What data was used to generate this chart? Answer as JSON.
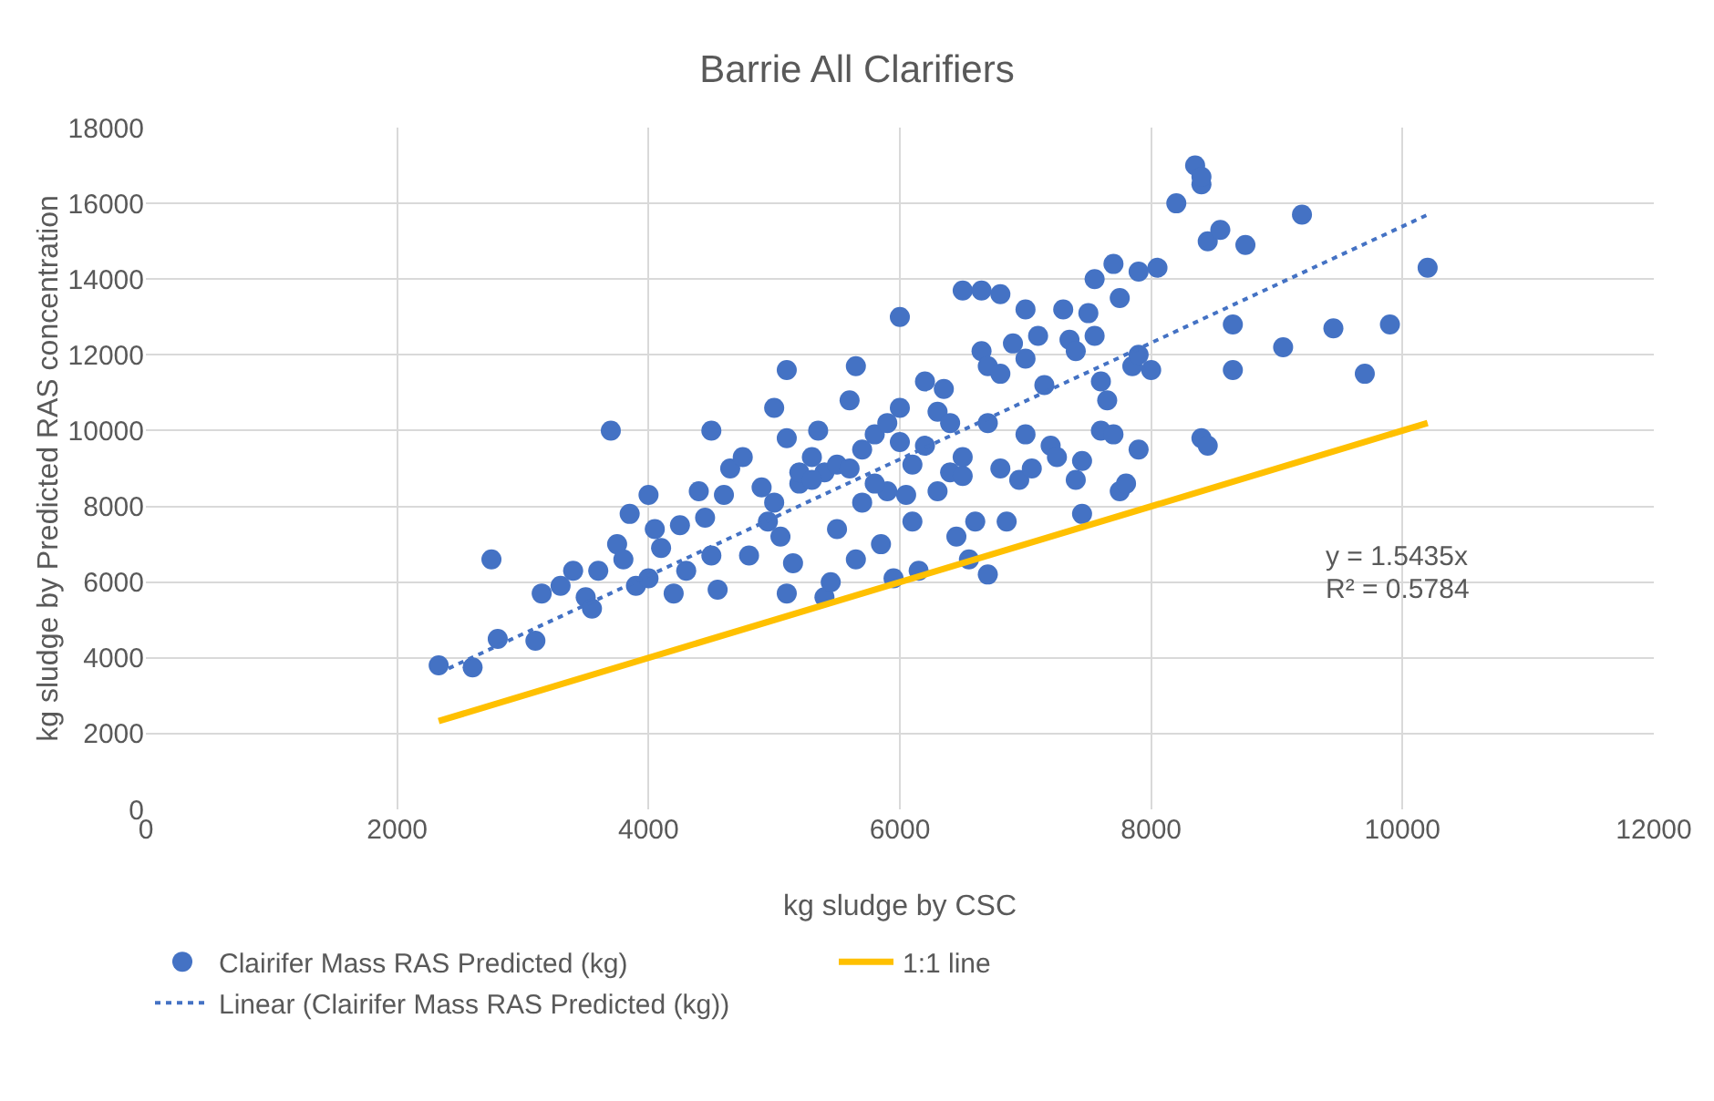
{
  "chart_data": {
    "type": "scatter",
    "title": "Barrie All Clarifiers",
    "xlabel": "kg sludge by CSC",
    "ylabel": "kg sludge by Predicted RAS concentration",
    "xlim": [
      0,
      12000
    ],
    "xticks": [
      0,
      2000,
      4000,
      6000,
      8000,
      10000,
      12000
    ],
    "ylim": [
      0,
      18000
    ],
    "yticks": [
      0,
      2000,
      4000,
      6000,
      8000,
      10000,
      12000,
      14000,
      16000,
      18000
    ],
    "grid": true,
    "legend": "bottom",
    "annotations": [
      "y = 1.5435x",
      "R² = 0.5784"
    ],
    "series": [
      {
        "name": "Clairifer Mass RAS Predicted (kg)",
        "color": "#4472c4",
        "marker": "circle",
        "x": [
          2330,
          2600,
          2750,
          2800,
          3100,
          3150,
          3300,
          3400,
          3500,
          3550,
          3600,
          3700,
          3750,
          3800,
          3850,
          3900,
          4000,
          4000,
          4050,
          4100,
          4200,
          4250,
          4300,
          4400,
          4450,
          4500,
          4500,
          4550,
          4600,
          4650,
          4750,
          4800,
          4900,
          4950,
          5000,
          5050,
          5100,
          5100,
          5100,
          5150,
          5200,
          5300,
          5350,
          5400,
          5400,
          5450,
          5500,
          5500,
          5600,
          5650,
          5650,
          5700,
          5700,
          5800,
          5850,
          5900,
          5900,
          5950,
          6000,
          6000,
          6000,
          6050,
          6100,
          6150,
          6200,
          6200,
          6300,
          6350,
          6400,
          6400,
          6450,
          6500,
          6500,
          6500,
          6550,
          6600,
          6650,
          6650,
          6700,
          6700,
          6700,
          6800,
          6800,
          6800,
          6850,
          6900,
          6950,
          7000,
          7000,
          7000,
          7050,
          7100,
          7150,
          7200,
          7250,
          7300,
          7350,
          7400,
          7400,
          7450,
          7450,
          7500,
          7550,
          7550,
          7600,
          7600,
          7650,
          7700,
          7700,
          7750,
          7750,
          7800,
          7850,
          7900,
          7900,
          7900,
          8000,
          8050,
          8200,
          8350,
          8400,
          8400,
          8400,
          8450,
          8450,
          8550,
          8650,
          8650,
          8750,
          9200,
          9050,
          9450,
          9700,
          9900,
          10200,
          5000,
          5200,
          5300,
          5600,
          5800,
          6100,
          6300
        ],
        "values": [
          3800,
          3750,
          6600,
          4500,
          4450,
          5700,
          5900,
          6300,
          5600,
          5300,
          6300,
          10000,
          7000,
          6600,
          7800,
          5900,
          8300,
          6100,
          7400,
          6900,
          5700,
          7500,
          6300,
          8400,
          7700,
          10000,
          6700,
          5800,
          8300,
          9000,
          9300,
          6700,
          8500,
          7600,
          10600,
          7200,
          11600,
          9800,
          5700,
          6500,
          8600,
          9300,
          10000,
          8900,
          5600,
          6000,
          9100,
          7400,
          10800,
          11700,
          6600,
          9500,
          8100,
          9900,
          7000,
          8400,
          10200,
          6100,
          13000,
          10600,
          9700,
          8300,
          7600,
          6300,
          11300,
          9600,
          10500,
          11100,
          10200,
          8900,
          7200,
          13700,
          9300,
          8800,
          6600,
          7600,
          13700,
          12100,
          11700,
          10200,
          6200,
          13600,
          11500,
          9000,
          7600,
          12300,
          8700,
          13200,
          11900,
          9900,
          9000,
          12500,
          11200,
          9600,
          9300,
          13200,
          12400,
          12100,
          8700,
          7800,
          9200,
          13100,
          14000,
          12500,
          11300,
          10000,
          10800,
          14400,
          9900,
          13500,
          8400,
          8600,
          11700,
          14200,
          12000,
          9500,
          11600,
          14300,
          16000,
          17000,
          16500,
          16700,
          9800,
          15000,
          9600,
          15300,
          12800,
          11600,
          14900,
          15700,
          12200,
          12700,
          11500,
          12800,
          14300,
          8100,
          8900,
          8700,
          9000,
          8600,
          9100,
          8400
        ]
      },
      {
        "name": "1:1 line",
        "type": "line",
        "color": "#ffc000",
        "line_style": "solid",
        "marker": "none",
        "x": [
          2330,
          10200
        ],
        "values": [
          2330,
          10200
        ]
      },
      {
        "name": "Linear (Clairifer Mass RAS Predicted (kg))",
        "type": "line",
        "color": "#4472c4",
        "line_style": "dotted",
        "marker": "none",
        "x": [
          2330,
          10200
        ],
        "values": [
          3600,
          15700
        ]
      }
    ]
  }
}
